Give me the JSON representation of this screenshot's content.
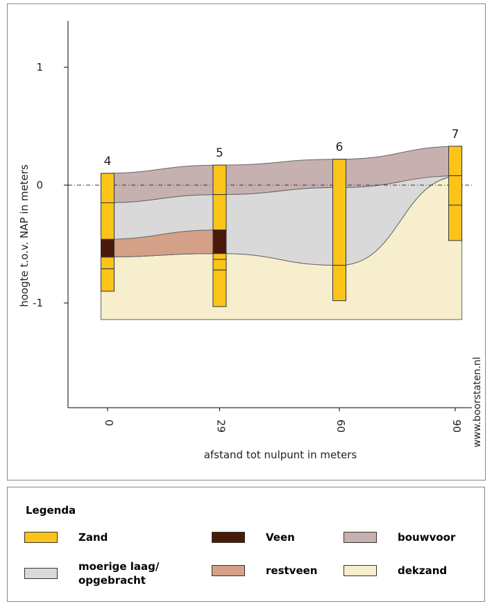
{
  "chart_data": {
    "type": "cross-section",
    "x_label": "afstand tot nulpunt in meters",
    "y_label": "hoogte t.o.v. NAP in meters",
    "watermark": "www.boorstaten.nl",
    "x": [
      0,
      29,
      60,
      90
    ],
    "xlim": [
      -10.24,
      94.3
    ],
    "xticks": [
      0,
      29,
      60,
      90
    ],
    "ylim": [
      -1.888,
      1.394
    ],
    "yticks": [
      -1,
      0,
      1
    ],
    "zero_line": true,
    "borehole_labels": [
      "4",
      "5",
      "6",
      "7"
    ],
    "legend_title": "Legenda",
    "boreholes": [
      {
        "name": "Zand",
        "color": "#fcc419",
        "segments": [
          [
            [
              0.1,
              -0.15
            ],
            [
              -0.15,
              -0.46
            ],
            [
              -0.61,
              -0.71
            ],
            [
              -0.71,
              -0.9
            ]
          ],
          [
            [
              0.17,
              -0.08
            ],
            [
              -0.08,
              -0.38
            ],
            [
              -0.58,
              -0.63
            ],
            [
              -0.63,
              -0.72
            ],
            [
              -0.72,
              -1.03
            ]
          ],
          [
            [
              0.22,
              -0.68
            ],
            [
              -0.68,
              -0.98
            ]
          ],
          [
            [
              0.33,
              0.08
            ],
            [
              0.08,
              -0.17
            ],
            [
              -0.17,
              -0.47
            ]
          ]
        ]
      },
      {
        "name": "Veen",
        "color": "#4a1a08",
        "segments": [
          [
            [
              -0.46,
              -0.61
            ]
          ],
          [
            [
              -0.38,
              -0.58
            ]
          ],
          [],
          []
        ]
      }
    ],
    "layers": [
      {
        "name": "dekzand",
        "color": "#f6eecd",
        "top": [
          -0.61,
          -0.58,
          -0.68,
          0.08
        ],
        "bottom": [
          -1.14,
          -1.14,
          -1.14,
          -1.14
        ]
      },
      {
        "name": "moerige laag/ opgebracht",
        "color": "#d9d9d9",
        "top": [
          -0.15,
          -0.08,
          -0.02,
          0.08
        ],
        "bottom": [
          -0.61,
          -0.58,
          -0.68,
          0.08
        ]
      },
      {
        "name": "restveen",
        "color": "#d4a088",
        "top": [
          -0.46,
          -0.38,
          null,
          null
        ],
        "bottom": [
          -0.61,
          -0.58,
          null,
          null
        ]
      },
      {
        "name": "bouwvoor",
        "color": "#c6b0b0",
        "top": [
          0.1,
          0.17,
          0.22,
          0.33
        ],
        "bottom": [
          -0.15,
          -0.08,
          -0.02,
          0.08
        ]
      }
    ]
  }
}
